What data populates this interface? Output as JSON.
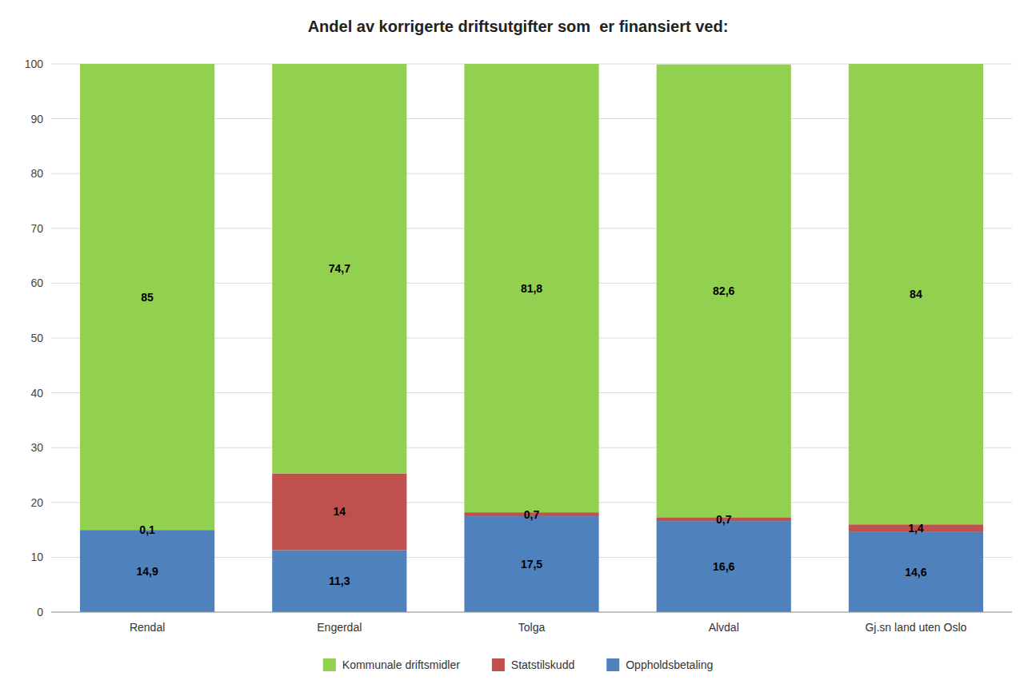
{
  "chart_data": {
    "type": "bar",
    "title": "Andel av korrigerte driftsutgifter som  er finansiert ved:",
    "categories": [
      "Rendal",
      "Engerdal",
      "Tolga",
      "Alvdal",
      "Gj.sn land uten Oslo"
    ],
    "series": [
      {
        "name": "Kommunale driftsmidler",
        "color": "#92D050",
        "values": [
          85.0,
          74.7,
          81.8,
          82.6,
          84.0
        ],
        "value_labels": [
          "85",
          "74,7",
          "81,8",
          "82,6",
          "84"
        ]
      },
      {
        "name": "Statstilskudd",
        "color": "#C0504D",
        "values": [
          0.1,
          14.0,
          0.7,
          0.7,
          1.4
        ],
        "value_labels": [
          "0,1",
          "14",
          "0,7",
          "0,7",
          "1,4"
        ]
      },
      {
        "name": "Oppholdsbetaling",
        "color": "#4F81BD",
        "values": [
          14.9,
          11.3,
          17.5,
          16.6,
          14.6
        ],
        "value_labels": [
          "14,9",
          "11,3",
          "17,5",
          "16,6",
          "14,6"
        ]
      }
    ],
    "stacked": true,
    "data_labels": true,
    "ylim": [
      0,
      100
    ],
    "yticks": [
      0,
      10,
      20,
      30,
      40,
      50,
      60,
      70,
      80,
      90,
      100
    ],
    "grid": true,
    "legend": "bottom"
  }
}
